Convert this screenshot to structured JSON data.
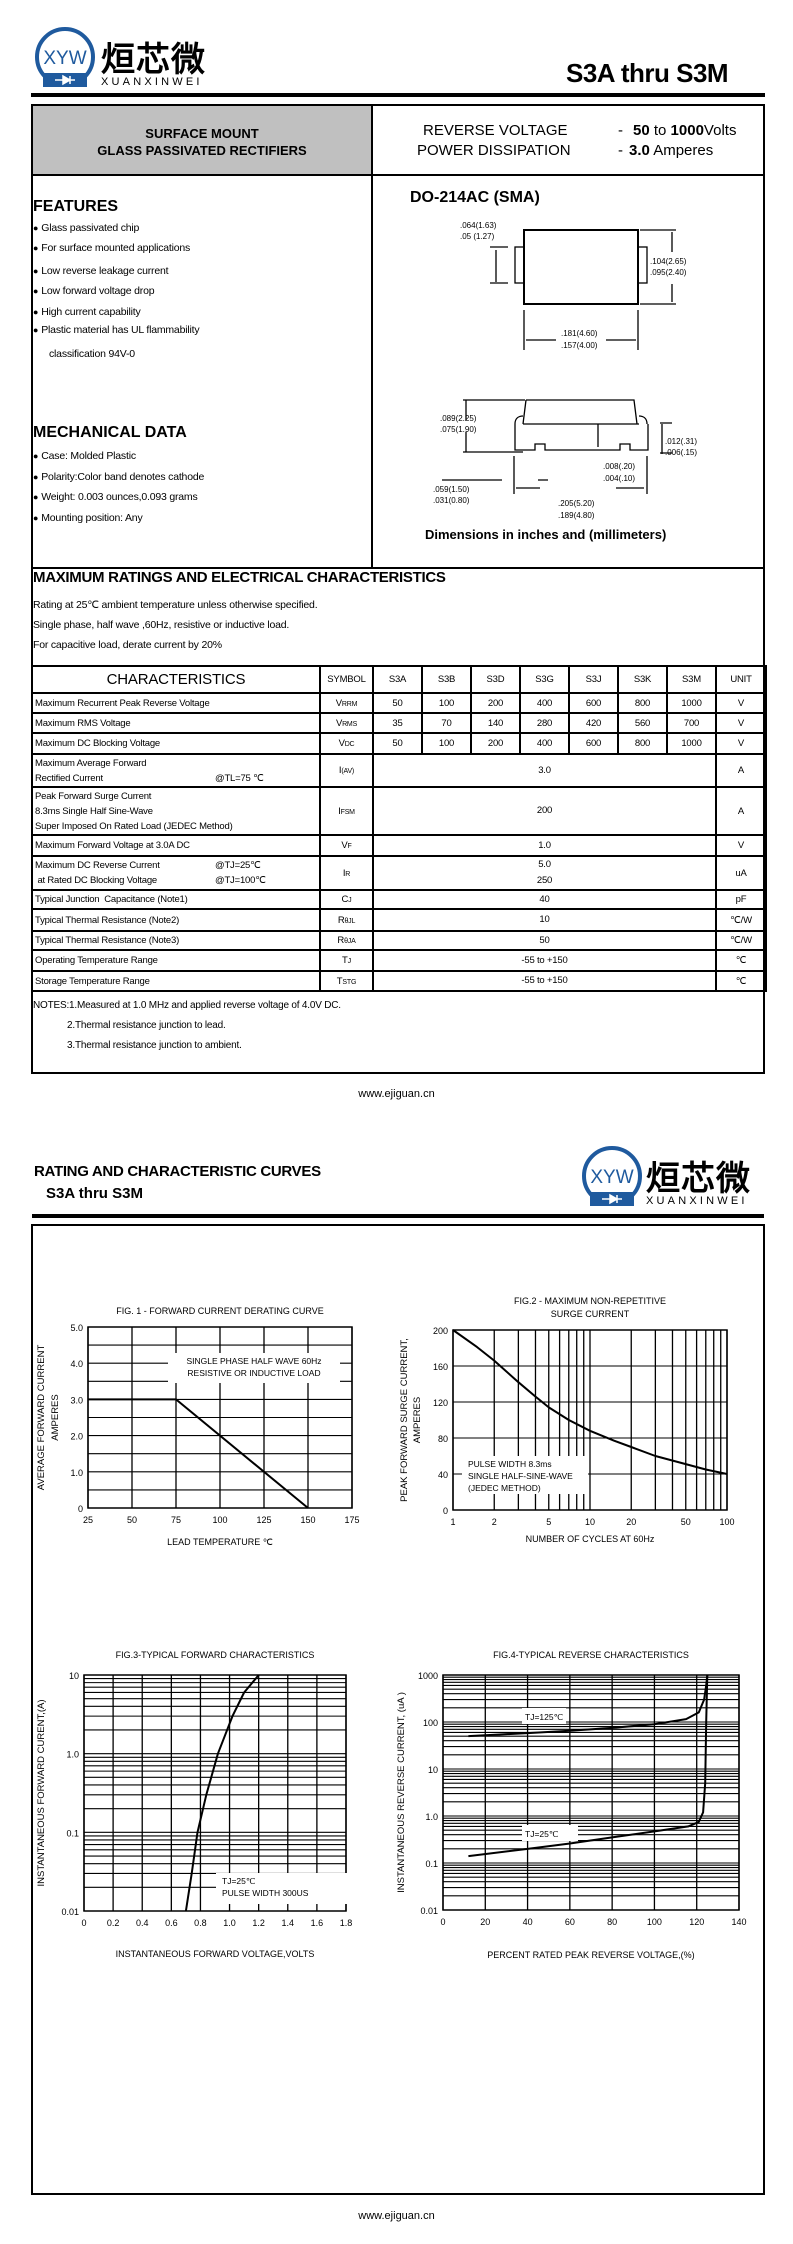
{
  "logo": {
    "chinese": "烜芯微",
    "english": "XUANXINWEI",
    "mark": "XYW",
    "brand_color": "#1f5a9e"
  },
  "header": {
    "part_title": "S3A thru S3M"
  },
  "summary": {
    "left_line1": "SURFACE MOUNT",
    "left_line2": "GLASS PASSIVATED RECTIFIERS",
    "reverse_voltage_label": "REVERSE VOLTAGE",
    "reverse_voltage_dash": "-",
    "reverse_voltage_min": "50",
    "reverse_voltage_to": "to",
    "reverse_voltage_max": "1000",
    "reverse_voltage_unit": "Volts",
    "power_label": "POWER DISSIPATION",
    "power_dash": "-",
    "power_value": "3.0",
    "power_unit": "Amperes",
    "gray_fill": "#c0c0c0"
  },
  "features": {
    "heading": "FEATURES",
    "items": [
      "Glass passivated chip",
      "For surface mounted applications",
      "Low reverse leakage current",
      "Low forward voltage drop",
      "High current capability",
      "Plastic material has UL flammability"
    ],
    "continuation": "classification 94V-0"
  },
  "mechanical": {
    "heading": "MECHANICAL DATA",
    "items": [
      "Case:   Molded Plastic",
      "Polarity:Color band denotes cathode",
      "Weight: 0.003 ounces,0.093 grams",
      "Mounting position: Any"
    ]
  },
  "package": {
    "title": "DO-214AC (SMA)",
    "dims": {
      "lead_w_max": ".064(1.63)",
      "lead_w_min": ".05 (1.27)",
      "body_h_max": ".104(2.65)",
      "body_h_min": ".095(2.40)",
      "body_l_max": ".181(4.60)",
      "body_l_min": ".157(4.00)",
      "height_max": ".089(2.25)",
      "height_min": ".075(1.90)",
      "lead_t_max": ".012(.31)",
      "lead_t_min": ".006(.15)",
      "standoff_max": ".008(.20)",
      "standoff_min": ".004(.10)",
      "foot_max": ".059(1.50)",
      "foot_min": ".031(0.80)",
      "overall_max": ".205(5.20)",
      "overall_min": ".189(4.80)"
    },
    "caption": "Dimensions in inches and (millimeters)"
  },
  "ratings": {
    "heading": "MAXIMUM RATINGS AND ELECTRICAL CHARACTERISTICS",
    "lines": [
      "Rating at 25℃ ambient temperature unless otherwise specified.",
      "Single phase, half wave ,60Hz, resistive or inductive load.",
      "For capacitive load, derate current by 20%"
    ]
  },
  "table": {
    "headers": [
      "CHARACTERISTICS",
      "SYMBOL",
      "S3A",
      "S3B",
      "S3D",
      "S3G",
      "S3J",
      "S3K",
      "S3M",
      "UNIT"
    ],
    "rows": [
      {
        "label": [
          "Maximum Recurrent Peak Reverse Voltage"
        ],
        "cond": [],
        "sym": "V",
        "sub": "RRM",
        "values": [
          "50",
          "100",
          "200",
          "400",
          "600",
          "800",
          "1000"
        ],
        "unit": "V"
      },
      {
        "label": [
          "Maximum RMS Voltage"
        ],
        "cond": [],
        "sym": "V",
        "sub": "RMS",
        "values": [
          "35",
          "70",
          "140",
          "280",
          "420",
          "560",
          "700"
        ],
        "unit": "V"
      },
      {
        "label": [
          "Maximum DC Blocking Voltage"
        ],
        "cond": [],
        "sym": "V",
        "sub": "DC",
        "values": [
          "50",
          "100",
          "200",
          "400",
          "600",
          "800",
          "1000"
        ],
        "unit": "V"
      },
      {
        "label": [
          "Maximum Average Forward",
          "Rectified Current"
        ],
        "cond": [
          "",
          "@TL=75 ℃"
        ],
        "sym": "I",
        "sub": "(AV)",
        "values": [
          "3.0"
        ],
        "unit": "A"
      },
      {
        "label": [
          "Peak Forward Surge Current",
          "8.3ms Single Half Sine-Wave",
          "Super Imposed On Rated Load (JEDEC Method)"
        ],
        "cond": [],
        "sym": "I",
        "sub": "FSM",
        "values": [
          "200"
        ],
        "unit": "A"
      },
      {
        "label": [
          "Maximum Forward Voltage at 3.0A DC"
        ],
        "cond": [],
        "sym": "V",
        "sub": "F",
        "values": [
          "1.0"
        ],
        "unit": "V"
      },
      {
        "label": [
          "Maximum DC Reverse Current",
          " at Rated DC Blocking Voltage"
        ],
        "cond": [
          "@TJ=25℃",
          "@TJ=100℃"
        ],
        "sym": "I",
        "sub": "R",
        "values": [
          "5.0",
          "250"
        ],
        "unit": "uA",
        "stacked": true
      },
      {
        "label": [
          "Typical Junction  Capacitance (Note1)"
        ],
        "cond": [],
        "sym": "C",
        "sub": "J",
        "values": [
          "40"
        ],
        "unit": "pF"
      },
      {
        "label": [
          "Typical Thermal Resistance (Note2)"
        ],
        "cond": [],
        "sym": "R",
        "sub": "θJL",
        "values": [
          "10"
        ],
        "unit": "℃/W"
      },
      {
        "label": [
          "Typical Thermal Resistance (Note3)"
        ],
        "cond": [],
        "sym": "R",
        "sub": "θJA",
        "values": [
          "50"
        ],
        "unit": "℃/W"
      },
      {
        "label": [
          "Operating Temperature Range"
        ],
        "cond": [],
        "sym": "T",
        "sub": "J",
        "values": [
          "-55 to +150"
        ],
        "unit": "℃"
      },
      {
        "label": [
          "Storage Temperature Range"
        ],
        "cond": [],
        "sym": "T",
        "sub": "STG",
        "values": [
          "-55 to +150"
        ],
        "unit": "℃"
      }
    ]
  },
  "notes": [
    "NOTES:1.Measured at 1.0 MHz and applied reverse voltage of 4.0V DC.",
    "2.Thermal resistance junction to lead.",
    "3.Thermal resistance junction to ambient."
  ],
  "footer": {
    "website": "www.ejiguan.cn"
  },
  "page2": {
    "heading": "RATING AND CHARACTERISTIC CURVES",
    "subheading": "S3A thru S3M"
  },
  "chart_data": [
    {
      "type": "line",
      "title": [
        "FIG. 1 - FORWARD CURRENT DERATING CURVE"
      ],
      "xlabel": "LEAD TEMPERATURE  ℃",
      "ylabel": [
        "AVERAGE FORWARD CURRENT",
        "AMPERES"
      ],
      "xscale": "linear",
      "yscale": "linear",
      "xlim": [
        25,
        175
      ],
      "ylim": [
        0,
        5
      ],
      "xticks": [
        25,
        50,
        75,
        100,
        125,
        150,
        175
      ],
      "xtick_labels": [
        "25",
        "50",
        "75",
        "100",
        "125",
        "150",
        "175"
      ],
      "yticks": [
        0,
        1,
        2,
        3,
        4,
        5
      ],
      "ytick_labels": [
        "0",
        "1.0",
        "2.0",
        "3.0",
        "4.0",
        "5.0"
      ],
      "grid": true,
      "annotation": [
        "SINGLE PHASE HALF WAVE 60Hz",
        "RESISTIVE OR INDUCTIVE LOAD"
      ],
      "series": [
        {
          "x": [
            25,
            75,
            150
          ],
          "y": [
            3,
            3,
            0
          ]
        }
      ]
    },
    {
      "type": "line",
      "title": [
        "FIG.2 - MAXIMUM  NON-REPETITIVE",
        "SURGE  CURRENT"
      ],
      "xlabel": "NUMBER OF CYCLES AT 60Hz",
      "ylabel": [
        "PEAK FORWARD SURGE CURRENT,",
        "AMPERES"
      ],
      "xscale": "log",
      "yscale": "linear",
      "xlim": [
        1,
        100
      ],
      "ylim": [
        0,
        200
      ],
      "xticks": [
        1,
        2,
        5,
        10,
        20,
        50,
        100
      ],
      "xtick_labels": [
        "1",
        "2",
        "5",
        "10",
        "20",
        "50",
        "100"
      ],
      "yticks": [
        0,
        40,
        80,
        120,
        160,
        200
      ],
      "ytick_labels": [
        "0",
        "40",
        "80",
        "120",
        "160",
        "200"
      ],
      "grid": true,
      "annotation": [
        "PULSE WIDTH 8.3ms",
        "SINGLE HALF-SINE-WAVE",
        "(JEDEC METHOD)"
      ],
      "series": [
        {
          "x": [
            1,
            1.5,
            2,
            3,
            4,
            5,
            7,
            10,
            15,
            20,
            30,
            50,
            70,
            100
          ],
          "y": [
            200,
            181,
            166,
            142,
            126,
            114,
            100,
            88,
            77,
            70,
            60,
            51,
            45,
            40
          ]
        }
      ]
    },
    {
      "type": "line",
      "title": [
        "FIG.3-TYPICAL FORWARD CHARACTERISTICS"
      ],
      "xlabel": "INSTANTANEOUS FORWARD VOLTAGE,VOLTS",
      "ylabel": [
        "INSTANTANEOUS FORWARD  CURENT,(A)"
      ],
      "xscale": "linear",
      "yscale": "log",
      "xlim": [
        0,
        1.8
      ],
      "ylim": [
        0.01,
        10
      ],
      "xticks": [
        0,
        0.2,
        0.4,
        0.6,
        0.8,
        1.0,
        1.2,
        1.4,
        1.6,
        1.8
      ],
      "xtick_labels": [
        "0",
        "0.2",
        "0.4",
        "0.6",
        "0.8",
        "1.0",
        "1.2",
        "1.4",
        "1.6",
        "1.8"
      ],
      "yticks": [
        0.01,
        0.1,
        1,
        10
      ],
      "ytick_labels": [
        "0.01",
        "0.1",
        "1.0",
        "10"
      ],
      "grid": true,
      "annotation": [
        "TJ=25℃",
        "PULSE WIDTH 300US"
      ],
      "series": [
        {
          "x": [
            0.7,
            0.74,
            0.78,
            0.84,
            0.92,
            1.02,
            1.1,
            1.2
          ],
          "y": [
            0.01,
            0.03,
            0.1,
            0.3,
            1,
            3,
            6,
            10
          ]
        }
      ]
    },
    {
      "type": "line",
      "title": [
        "FIG.4-TYPICAL REVERSE CHARACTERISTICS"
      ],
      "xlabel": "PERCENT RATED PEAK REVERSE VOLTAGE,(%)",
      "ylabel": [
        "INSTANTANEOUS REVERSE CURRENT, (uA )"
      ],
      "xscale": "linear",
      "yscale": "log",
      "xlim": [
        0,
        140
      ],
      "ylim": [
        0.01,
        1000
      ],
      "xticks": [
        0,
        20,
        40,
        60,
        80,
        100,
        120,
        140
      ],
      "xtick_labels": [
        "0",
        "20",
        "40",
        "60",
        "80",
        "100",
        "120",
        "140"
      ],
      "yticks": [
        0.01,
        0.1,
        1,
        10,
        100,
        1000
      ],
      "ytick_labels": [
        "0.01",
        "0.1",
        "1.0",
        "10",
        "100",
        "1000"
      ],
      "grid": true,
      "series": [
        {
          "name": "TJ=125℃",
          "x": [
            12,
            40,
            60,
            80,
            100,
            115,
            121,
            123.5,
            124.5,
            125
          ],
          "y": [
            50,
            58,
            65,
            75,
            90,
            115,
            160,
            300,
            600,
            1000
          ]
        },
        {
          "name": "TJ=25℃",
          "x": [
            12,
            40,
            60,
            80,
            100,
            116,
            121,
            123,
            124,
            124.5,
            125
          ],
          "y": [
            0.14,
            0.2,
            0.26,
            0.35,
            0.47,
            0.6,
            0.75,
            1.2,
            5,
            100,
            1000
          ]
        }
      ]
    }
  ]
}
